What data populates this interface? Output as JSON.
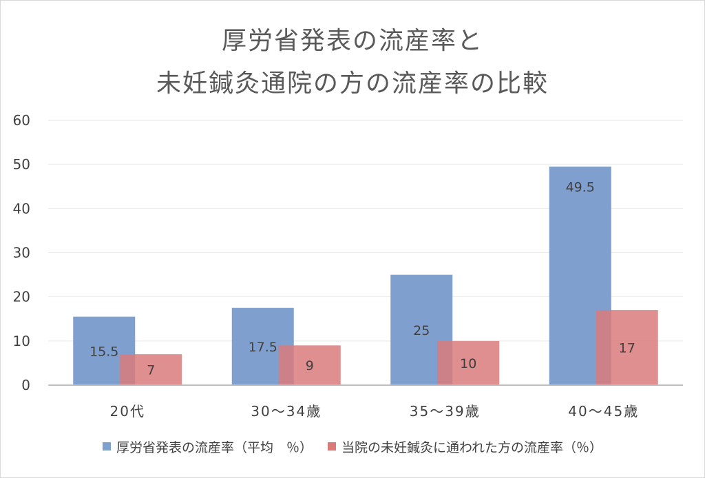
{
  "chart_data": {
    "type": "bar",
    "title_lines": [
      "厚労省発表の流産率と",
      "未妊鍼灸通院の方の流産率の比較"
    ],
    "categories": [
      "20代",
      "30～34歳",
      "35～39歳",
      "40～45歳"
    ],
    "series": [
      {
        "name": "厚労省発表の流産率（平均　％）",
        "values": [
          15.5,
          17.5,
          25,
          49.5
        ],
        "color": "#7F9FCF",
        "labels": [
          "15.5",
          "17.5",
          "25",
          "49.5"
        ]
      },
      {
        "name": "当院の未妊鍼灸に通われた方の流産率（％）",
        "values": [
          7,
          9,
          10,
          17
        ],
        "color": "#D97B7B",
        "labels": [
          "7",
          "9",
          "10",
          "17"
        ]
      }
    ],
    "yticks": [
      "0",
      "10",
      "20",
      "30",
      "40",
      "50",
      "60"
    ],
    "ylim": [
      0,
      60
    ],
    "grid": true,
    "legend_position": "bottom"
  },
  "colors": {
    "grid": "#e6e6e6",
    "axis": "#bfbfbf",
    "overlap": "#b06a7a",
    "text": "#404040"
  }
}
